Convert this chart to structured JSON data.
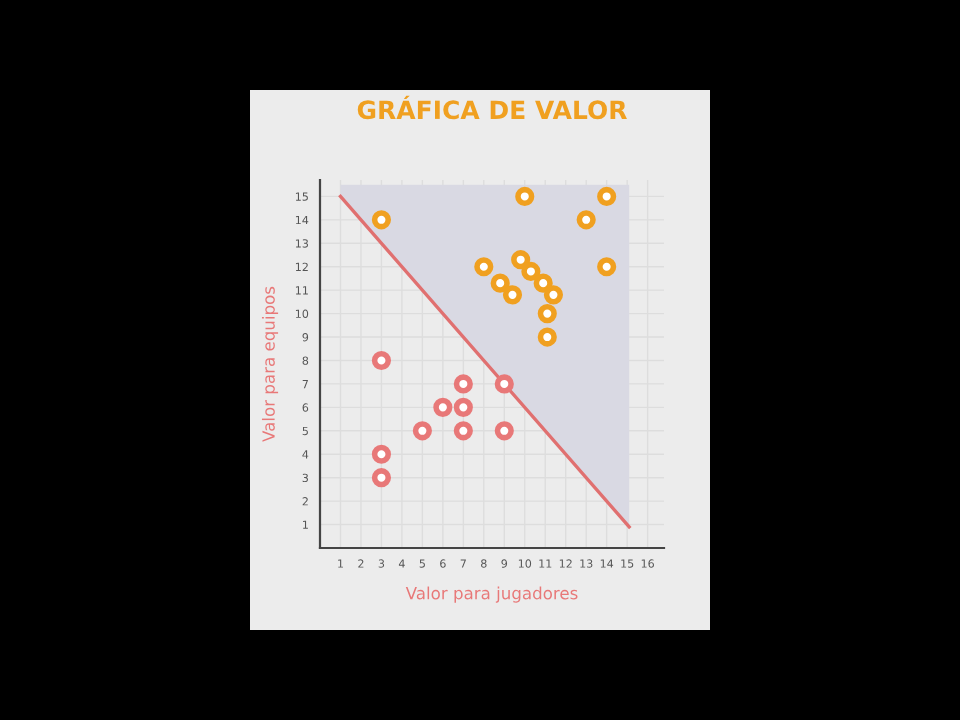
{
  "chart_data": {
    "type": "scatter",
    "title": "GRÁFICA DE VALOR",
    "xlabel": "Valor para jugadores",
    "ylabel": "Valor para equipos",
    "xlim": [
      0,
      16.8
    ],
    "ylim": [
      0,
      15.7
    ],
    "xticks": [
      1,
      2,
      3,
      4,
      5,
      6,
      7,
      8,
      9,
      10,
      11,
      12,
      13,
      14,
      15,
      16
    ],
    "yticks": [
      1,
      2,
      3,
      4,
      5,
      6,
      7,
      8,
      9,
      10,
      11,
      12,
      13,
      14,
      15
    ],
    "grid": true,
    "marker": "circle",
    "series": [
      {
        "type": "line",
        "marker": "none",
        "color": "#e07070",
        "x": [
          1,
          15.1
        ],
        "values": [
          15,
          0.9
        ],
        "lower": [
          15,
          0.9
        ],
        "upper": [
          15.5,
          15.5
        ]
      },
      {
        "color": "#f0a020",
        "x": [
          10,
          14,
          3,
          13,
          8,
          9.8,
          10.3,
          14,
          8.8,
          10.9,
          9.4,
          11.4,
          11.1,
          11.1
        ],
        "values": [
          15,
          15,
          14,
          14,
          12,
          12.3,
          11.8,
          12,
          11.3,
          11.3,
          10.8,
          10.8,
          10,
          9
        ]
      },
      {
        "color": "#e87878",
        "x": [
          3,
          7,
          9,
          6,
          7,
          5,
          7,
          9,
          3,
          3
        ],
        "values": [
          8,
          7,
          7,
          6,
          6,
          5,
          5,
          5,
          4,
          3
        ]
      }
    ]
  }
}
